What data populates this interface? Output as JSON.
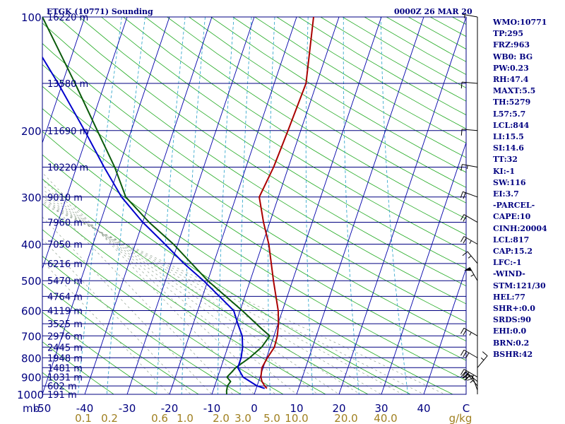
{
  "header": {
    "station": "ETGK (10771) Sounding",
    "valid_time": "0000Z 26 MAR 20"
  },
  "chart_data": {
    "type": "line",
    "title": "ETGK (10771) Sounding",
    "subtitle": "0000Z 26 MAR 20",
    "xlabel": "",
    "ylabel": "mb",
    "xlim": [
      -50,
      50
    ],
    "pressure_range": [
      100,
      1000
    ],
    "y_scale": "log",
    "pressure_ticks": [
      100,
      200,
      300,
      400,
      500,
      600,
      700,
      800,
      900,
      1000
    ],
    "temperature_ticks": [
      "-50",
      "-40",
      "-30",
      "-20",
      "-10",
      "0",
      "10",
      "20",
      "30",
      "40",
      "C"
    ],
    "mixing_ratio_ticks": [
      "0.1",
      "0.2",
      "0.6",
      "1.0",
      "2.0",
      "3.0",
      "5.0",
      "10.0",
      "20.0",
      "40.0",
      "g/kg"
    ],
    "height_labels": [
      {
        "p": 100,
        "label": "16220 m"
      },
      {
        "p": 150,
        "label": "13580 m"
      },
      {
        "p": 200,
        "label": "11690 m"
      },
      {
        "p": 250,
        "label": "10220 m"
      },
      {
        "p": 300,
        "label": "9010 m"
      },
      {
        "p": 350,
        "label": "7960 m"
      },
      {
        "p": 400,
        "label": "7050 m"
      },
      {
        "p": 450,
        "label": "6216 m"
      },
      {
        "p": 500,
        "label": "5470 m"
      },
      {
        "p": 550,
        "label": "4764 m"
      },
      {
        "p": 600,
        "label": "4119 m"
      },
      {
        "p": 650,
        "label": "3525 m"
      },
      {
        "p": 700,
        "label": "2976 m"
      },
      {
        "p": 750,
        "label": "2445 m"
      },
      {
        "p": 800,
        "label": "1948 m"
      },
      {
        "p": 850,
        "label": "1481 m"
      },
      {
        "p": 900,
        "label": "1031 m"
      },
      {
        "p": 950,
        "label": "602 m"
      },
      {
        "p": 1000,
        "label": "191 m"
      }
    ],
    "series": [
      {
        "color": "#0a5a0a",
        "points": [
          [
            1000,
            -6.5
          ],
          [
            980,
            -6.8
          ],
          [
            950,
            -7.0
          ],
          [
            925,
            -6.6
          ],
          [
            900,
            -7.8
          ],
          [
            870,
            -7.0
          ],
          [
            850,
            -6.5
          ],
          [
            800,
            -4.0
          ],
          [
            750,
            -2.0
          ],
          [
            700,
            -1.0
          ],
          [
            670,
            -3.5
          ],
          [
            600,
            -9.5
          ],
          [
            500,
            -20.0
          ],
          [
            400,
            -31.0
          ],
          [
            350,
            -38.5
          ],
          [
            300,
            -46.0
          ],
          [
            250,
            -51.0
          ],
          [
            200,
            -58.0
          ],
          [
            150,
            -67.0
          ],
          [
            100,
            -80.0
          ]
        ]
      },
      {
        "color": "#0000cc",
        "points": [
          [
            965,
            2.0
          ],
          [
            950,
            0.0
          ],
          [
            925,
            -2.0
          ],
          [
            900,
            -4.0
          ],
          [
            850,
            -6.0
          ],
          [
            800,
            -6.0
          ],
          [
            750,
            -6.5
          ],
          [
            700,
            -7.5
          ],
          [
            650,
            -9.5
          ],
          [
            600,
            -11.5
          ],
          [
            550,
            -16.0
          ],
          [
            500,
            -21.0
          ],
          [
            450,
            -27.0
          ],
          [
            400,
            -33.0
          ],
          [
            350,
            -40.0
          ],
          [
            300,
            -47.0
          ],
          [
            250,
            -53.5
          ],
          [
            200,
            -61.0
          ],
          [
            150,
            -71.0
          ],
          [
            105,
            -84.0
          ]
        ]
      },
      {
        "color": "#aa0000",
        "points": [
          [
            965,
            2.5
          ],
          [
            950,
            1.8
          ],
          [
            925,
            0.8
          ],
          [
            900,
            0.2
          ],
          [
            850,
            -0.3
          ],
          [
            800,
            0.2
          ],
          [
            750,
            1.0
          ],
          [
            700,
            0.8
          ],
          [
            650,
            0.1
          ],
          [
            600,
            -1.0
          ],
          [
            500,
            -4.5
          ],
          [
            400,
            -8.5
          ],
          [
            350,
            -11.5
          ],
          [
            300,
            -14.5
          ],
          [
            250,
            -13.5
          ],
          [
            200,
            -13.0
          ],
          [
            150,
            -12.5
          ],
          [
            100,
            -16.0
          ]
        ]
      }
    ],
    "wind_barbs": [
      {
        "p": 100,
        "dir": 280,
        "kt": 5
      },
      {
        "p": 150,
        "dir": 275,
        "kt": 10
      },
      {
        "p": 200,
        "dir": 275,
        "kt": 10
      },
      {
        "p": 250,
        "dir": 280,
        "kt": 15
      },
      {
        "p": 300,
        "dir": 290,
        "kt": 20
      },
      {
        "p": 350,
        "dir": 300,
        "kt": 20
      },
      {
        "p": 400,
        "dir": 300,
        "kt": 25
      },
      {
        "p": 450,
        "dir": 320,
        "kt": 15
      },
      {
        "p": 500,
        "dir": 330,
        "kt": 55
      },
      {
        "p": 700,
        "dir": 300,
        "kt": 25
      },
      {
        "p": 800,
        "dir": 300,
        "kt": 30
      },
      {
        "p": 850,
        "dir": 40,
        "kt": 15
      },
      {
        "p": 900,
        "dir": 300,
        "kt": 35
      },
      {
        "p": 925,
        "dir": 310,
        "kt": 30
      },
      {
        "p": 950,
        "dir": 320,
        "kt": 25
      },
      {
        "p": 975,
        "dir": 340,
        "kt": 20
      }
    ]
  },
  "indices": [
    "WMO:10771",
    "TP:295",
    "FRZ:963",
    "WB0: BG",
    "PW:0.23",
    "RH:47.4",
    "MAXT:5.5",
    "TH:5279",
    "L57:5.7",
    "LCL:844",
    "LI:15.5",
    "SI:14.6",
    "TT:32",
    "KI:-1",
    "SW:116",
    "EI:3.7",
    "-PARCEL-",
    "CAPE:10",
    "CINH:20004",
    "LCL:817",
    "CAP:15.2",
    "LFC:-1",
    "-WIND-",
    "STM:121/30",
    "HEL:77",
    "SHR+:0.0",
    "SRDS:90",
    "EHI:0.0",
    "BRN:0.2",
    "BSHR:42"
  ]
}
